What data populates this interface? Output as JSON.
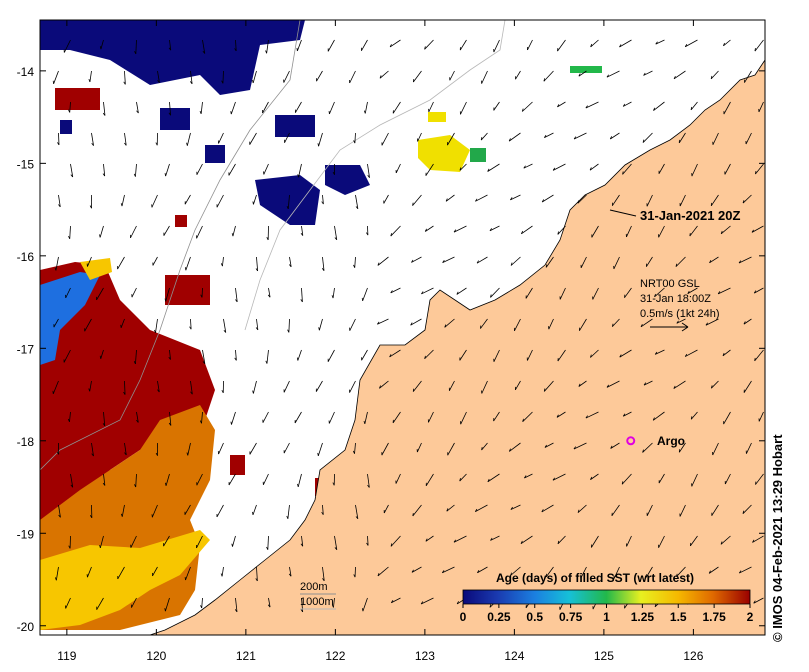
{
  "map": {
    "timestamp": "31-Jan-2021 20Z",
    "current_label": {
      "line1": "NRT00 GSL",
      "line2": "31-Jan 18:00Z",
      "line3": "0.5m/s (1kt 24h)"
    },
    "argo_label": "Argo",
    "bathymetry_labels": [
      "200m",
      "1000m"
    ],
    "credit": "© IMOS 04-Feb-2021 13:29 Hobart",
    "lon_ticks": [
      "119",
      "120",
      "121",
      "122",
      "123",
      "124",
      "125",
      "126"
    ],
    "lat_ticks": [
      "-14",
      "-15",
      "-16",
      "-17",
      "-18",
      "-19",
      "-20"
    ],
    "lon_values": [
      119,
      120,
      121,
      122,
      123,
      124,
      125,
      126
    ],
    "lat_values": [
      -14,
      -15,
      -16,
      -17,
      -18,
      -19,
      -20
    ],
    "lon_range": [
      118.7,
      126.8
    ],
    "lat_range": [
      -20.1,
      -13.45
    ],
    "argo_position": [
      125.3,
      -18.0
    ],
    "colors": {
      "land": "#fdc999",
      "ocean_missing": "#ffffff",
      "age_0": "#0a0a7a",
      "age_2": "#990000"
    }
  },
  "legend": {
    "title": "Age (days) of filled SST (wrt latest)",
    "ticks": [
      "0",
      "0.25",
      "0.5",
      "0.75",
      "1",
      "1.25",
      "1.5",
      "1.75",
      "2"
    ],
    "range": [
      0,
      2
    ]
  }
}
